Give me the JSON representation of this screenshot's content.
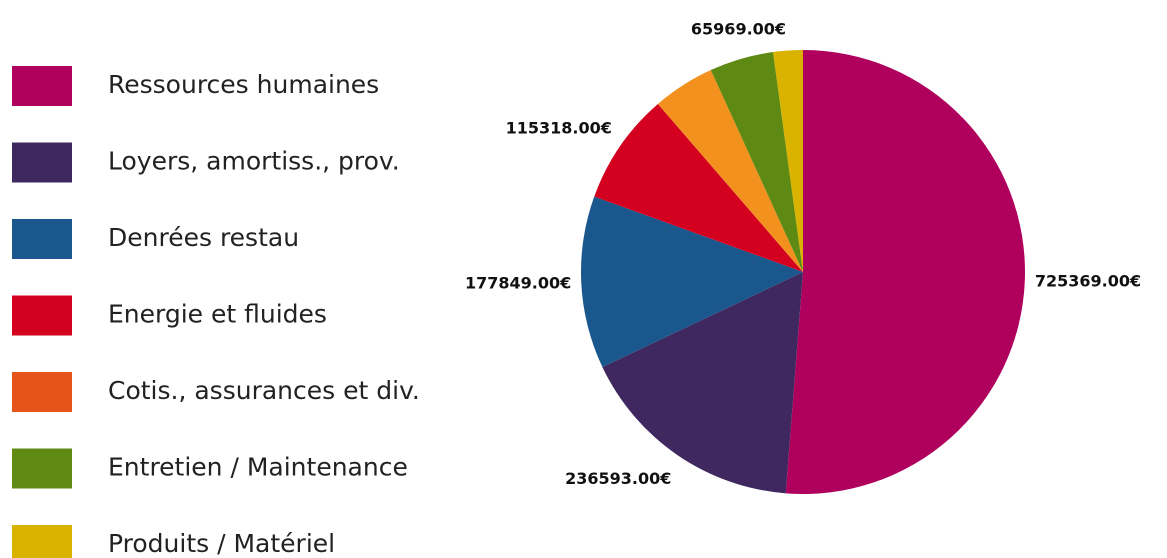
{
  "chart_data": {
    "type": "pie",
    "categories": [
      "Ressources humaines",
      "Loyers, amortiss., prov.",
      "Denrées restau",
      "Energie et fluides",
      "Cotis., assurances et div.",
      "Entretien / Maintenance",
      "Produits / Matériel"
    ],
    "values": [
      725369,
      236593,
      177849,
      115318,
      64000,
      65969,
      30500
    ],
    "value_labels": [
      "725369.00€",
      "236593.00€",
      "177849.00€",
      "115318.00€",
      null,
      "65969.00€",
      null
    ],
    "colors": [
      "#b0005e",
      "#3f2860",
      "#1a578c",
      "#d4001f",
      "#f3911f",
      "#5e8a14",
      "#d9b300"
    ],
    "legend_colors": [
      "#b0005e",
      "#3f2860",
      "#1a578c",
      "#d4001f",
      "#e6541b",
      "#5e8a14",
      "#d9b300"
    ],
    "legend": "left"
  }
}
